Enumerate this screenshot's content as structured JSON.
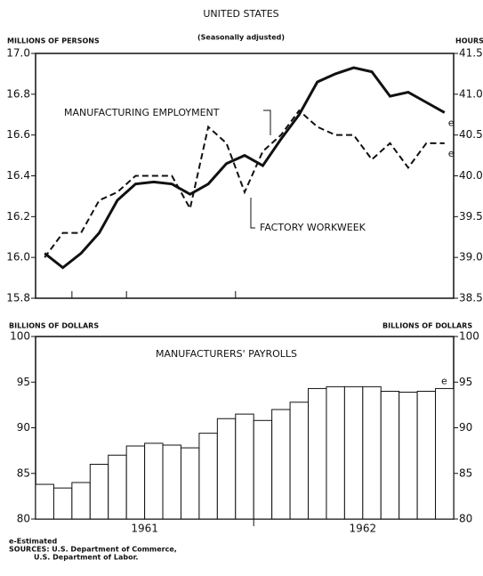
{
  "title": "UNITED STATES",
  "footer": [
    "e-Estimated",
    "SOURCES: U.S. Department of Commerce,",
    "U.S. Department of Labor."
  ],
  "chart_data": [
    {
      "type": "line",
      "subtitle": "(Seasonally adjusted)",
      "ylabel": "MILLIONS OF PERSONS",
      "y2label": "HOURS",
      "categories": [
        null,
        null,
        null,
        null,
        null,
        null,
        null,
        null,
        null,
        null,
        null,
        null,
        null,
        null,
        null,
        null,
        null,
        null,
        null,
        null,
        null,
        null,
        null
      ],
      "series": [
        {
          "name": "MANUFACTURING EMPLOYMENT",
          "color": "#111",
          "dash": false,
          "values": [
            16.02,
            15.95,
            16.02,
            16.12,
            16.28,
            16.36,
            16.37,
            16.36,
            16.31,
            16.36,
            16.46,
            16.5,
            16.45,
            16.58,
            16.7,
            16.86,
            16.9,
            16.93,
            16.91,
            16.79,
            16.81,
            16.76,
            16.71
          ],
          "end_label": "e"
        },
        {
          "name": "FACTORY WORKWEEK",
          "color": "#111",
          "dash": true,
          "axis": "y2",
          "values": [
            39.0,
            39.3,
            39.3,
            39.7,
            39.8,
            40.0,
            40.0,
            40.0,
            39.6,
            40.6,
            40.4,
            39.8,
            40.3,
            40.5,
            40.8,
            40.6,
            40.5,
            40.5,
            40.2,
            40.4,
            40.1,
            40.4,
            40.4
          ],
          "end_label": "e"
        }
      ],
      "ylim": [
        15.8,
        17.0
      ],
      "yticks": [
        {
          "value": 15.8,
          "label": "15.8"
        },
        {
          "value": 16.0,
          "label": "16.0"
        },
        16.2,
        16.4,
        16.6,
        16.8,
        {
          "value": 17.0,
          "label": "17.0"
        }
      ],
      "y2lim": [
        38.5,
        41.5
      ],
      "y2ticks": [
        38.5,
        {
          "value": 39.0,
          "label": "39.0"
        },
        39.5,
        {
          "value": 40.0,
          "label": "40.0"
        },
        40.5,
        {
          "value": 41.0,
          "label": "41.0"
        },
        41.5
      ]
    },
    {
      "type": "bar",
      "title": "MANUFACTURERS' PAYROLLS",
      "ylabel": "BILLIONS OF DOLLARS",
      "y2label": "BILLIONS OF DOLLARS",
      "categories": [
        null,
        null,
        null,
        null,
        null,
        null,
        null,
        null,
        null,
        null,
        null,
        null,
        null,
        null,
        null,
        null,
        null,
        null,
        null,
        null,
        null,
        null,
        null
      ],
      "values": [
        83.8,
        83.4,
        84.0,
        86.0,
        87.0,
        88.0,
        88.3,
        88.1,
        87.8,
        89.4,
        91.0,
        91.5,
        90.8,
        92.0,
        92.8,
        94.3,
        94.5,
        94.5,
        94.5,
        94.0,
        93.9,
        94.0,
        94.3
      ],
      "end_label": "e",
      "color": "#fff",
      "years": [
        "1961",
        "1962"
      ],
      "ylim": [
        80,
        100
      ],
      "yticks": [
        80,
        85,
        90,
        95,
        100
      ],
      "y2lim": [
        80,
        100
      ],
      "y2ticks": [
        80,
        85,
        90,
        95,
        100
      ]
    }
  ]
}
